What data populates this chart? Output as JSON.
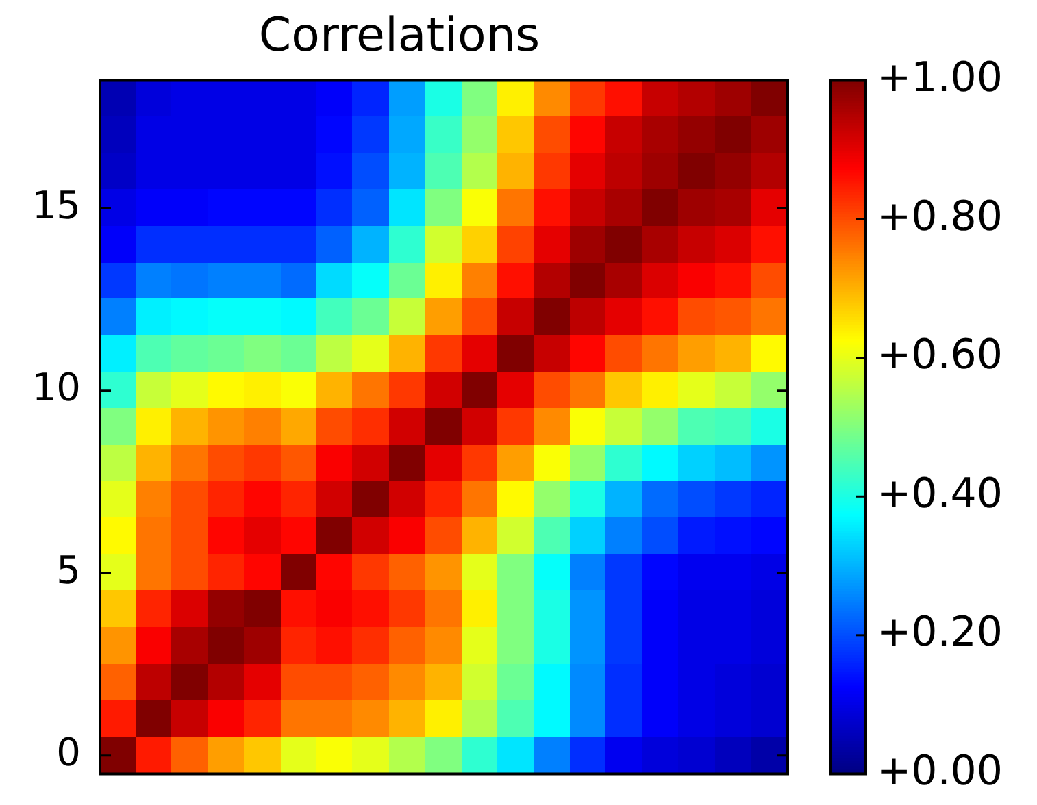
{
  "chart_data": {
    "type": "heatmap",
    "title": "Correlations",
    "categories": [
      null,
      null,
      null,
      null,
      null,
      null,
      null,
      null,
      null,
      null,
      null,
      null,
      null,
      null,
      null,
      null,
      null,
      null,
      null
    ],
    "y_categories": [
      null,
      null,
      null,
      "15",
      null,
      null,
      null,
      null,
      "10",
      null,
      null,
      null,
      null,
      "5",
      null,
      null,
      null,
      null,
      "0"
    ],
    "tick_labels": "y",
    "clim": [
      0,
      1
    ],
    "cticks": [
      {
        "value": 0,
        "label": "+0.00"
      },
      {
        "value": 0.2,
        "label": "+0.20"
      },
      {
        "value": 0.4,
        "label": "+0.40"
      },
      {
        "value": 0.6,
        "label": "+0.60"
      },
      {
        "value": 0.8,
        "label": "+0.80"
      },
      {
        "value": 1,
        "label": "+1.00"
      }
    ],
    "cells": [
      [
        0.05,
        0.09,
        0.1,
        0.1,
        0.1,
        0.1,
        0.12,
        0.16,
        0.28,
        0.4,
        0.5,
        0.64,
        0.74,
        0.82,
        0.86,
        0.93,
        0.95,
        0.97,
        1
      ],
      [
        0.06,
        0.1,
        0.1,
        0.1,
        0.1,
        0.1,
        0.13,
        0.18,
        0.29,
        0.43,
        0.52,
        0.68,
        0.8,
        0.87,
        0.93,
        0.96,
        0.98,
        1,
        0.97
      ],
      [
        0.07,
        0.1,
        0.1,
        0.1,
        0.1,
        0.1,
        0.14,
        0.2,
        0.3,
        0.45,
        0.55,
        0.7,
        0.82,
        0.9,
        0.94,
        0.97,
        1,
        0.98,
        0.95
      ],
      [
        0.1,
        0.12,
        0.12,
        0.13,
        0.13,
        0.13,
        0.17,
        0.22,
        0.35,
        0.5,
        0.62,
        0.76,
        0.86,
        0.93,
        0.96,
        1,
        0.97,
        0.96,
        0.9
      ],
      [
        0.12,
        0.17,
        0.17,
        0.17,
        0.17,
        0.17,
        0.22,
        0.3,
        0.42,
        0.58,
        0.67,
        0.81,
        0.9,
        0.97,
        1,
        0.96,
        0.93,
        0.91,
        0.86
      ],
      [
        0.18,
        0.25,
        0.24,
        0.25,
        0.25,
        0.23,
        0.34,
        0.38,
        0.48,
        0.64,
        0.75,
        0.86,
        0.95,
        1,
        0.96,
        0.91,
        0.88,
        0.86,
        0.8
      ],
      [
        0.25,
        0.36,
        0.37,
        0.38,
        0.38,
        0.37,
        0.44,
        0.48,
        0.57,
        0.72,
        0.8,
        0.93,
        1,
        0.94,
        0.9,
        0.86,
        0.8,
        0.79,
        0.76
      ],
      [
        0.36,
        0.45,
        0.47,
        0.48,
        0.5,
        0.48,
        0.56,
        0.6,
        0.7,
        0.82,
        0.9,
        1,
        0.93,
        0.87,
        0.8,
        0.76,
        0.72,
        0.7,
        0.63
      ],
      [
        0.42,
        0.57,
        0.6,
        0.63,
        0.64,
        0.62,
        0.7,
        0.76,
        0.82,
        0.92,
        1,
        0.9,
        0.8,
        0.76,
        0.68,
        0.64,
        0.6,
        0.57,
        0.52
      ],
      [
        0.5,
        0.64,
        0.7,
        0.73,
        0.75,
        0.71,
        0.8,
        0.83,
        0.92,
        1,
        0.92,
        0.82,
        0.74,
        0.62,
        0.57,
        0.52,
        0.45,
        0.44,
        0.4
      ],
      [
        0.56,
        0.7,
        0.76,
        0.8,
        0.82,
        0.79,
        0.88,
        0.92,
        1,
        0.9,
        0.82,
        0.72,
        0.62,
        0.52,
        0.42,
        0.37,
        0.33,
        0.31,
        0.27
      ],
      [
        0.6,
        0.75,
        0.8,
        0.84,
        0.87,
        0.84,
        0.92,
        1,
        0.92,
        0.84,
        0.76,
        0.63,
        0.52,
        0.4,
        0.3,
        0.23,
        0.2,
        0.18,
        0.16
      ],
      [
        0.63,
        0.76,
        0.8,
        0.87,
        0.9,
        0.87,
        1,
        0.92,
        0.88,
        0.8,
        0.7,
        0.58,
        0.45,
        0.33,
        0.25,
        0.2,
        0.15,
        0.14,
        0.13
      ],
      [
        0.6,
        0.76,
        0.8,
        0.84,
        0.87,
        1,
        0.87,
        0.82,
        0.78,
        0.73,
        0.6,
        0.5,
        0.38,
        0.25,
        0.18,
        0.13,
        0.11,
        0.11,
        0.1
      ],
      [
        0.68,
        0.84,
        0.91,
        0.98,
        1,
        0.86,
        0.88,
        0.86,
        0.82,
        0.76,
        0.64,
        0.5,
        0.4,
        0.27,
        0.18,
        0.12,
        0.1,
        0.1,
        0.09
      ],
      [
        0.73,
        0.88,
        0.96,
        1,
        0.97,
        0.84,
        0.86,
        0.83,
        0.78,
        0.74,
        0.6,
        0.5,
        0.4,
        0.27,
        0.18,
        0.12,
        0.1,
        0.1,
        0.09
      ],
      [
        0.78,
        0.94,
        1,
        0.95,
        0.9,
        0.8,
        0.8,
        0.78,
        0.74,
        0.7,
        0.58,
        0.48,
        0.37,
        0.26,
        0.17,
        0.12,
        0.1,
        0.09,
        0.08
      ],
      [
        0.85,
        1,
        0.93,
        0.88,
        0.84,
        0.76,
        0.76,
        0.74,
        0.7,
        0.64,
        0.55,
        0.45,
        0.37,
        0.26,
        0.17,
        0.12,
        0.1,
        0.09,
        0.08
      ],
      [
        1,
        0.85,
        0.78,
        0.72,
        0.68,
        0.6,
        0.62,
        0.6,
        0.55,
        0.5,
        0.42,
        0.35,
        0.25,
        0.17,
        0.11,
        0.09,
        0.08,
        0.06,
        0.04
      ]
    ]
  }
}
